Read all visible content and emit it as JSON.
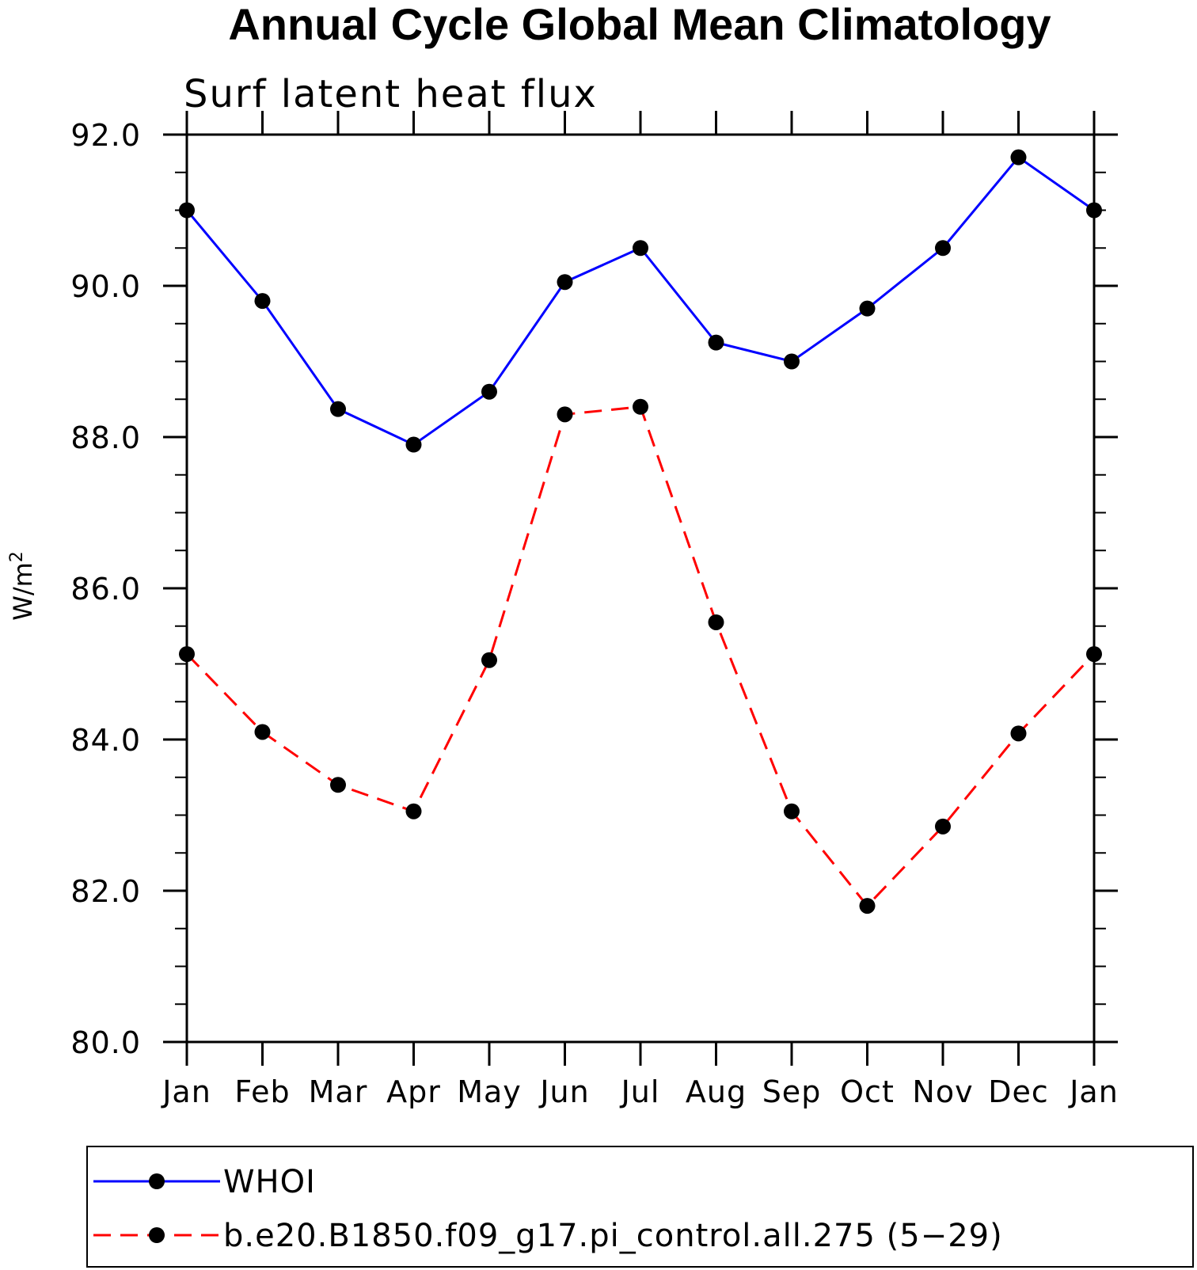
{
  "chart_data": {
    "type": "line",
    "title": "Annual Cycle Global Mean Climatology",
    "subtitle": "Surf latent heat flux",
    "ylabel": "W/m",
    "ylabel_superscript": "2",
    "xlabel": "",
    "categories": [
      "Jan",
      "Feb",
      "Mar",
      "Apr",
      "May",
      "Jun",
      "Jul",
      "Aug",
      "Sep",
      "Oct",
      "Nov",
      "Dec",
      "Jan"
    ],
    "ylim": [
      80.0,
      92.0
    ],
    "y_ticks": [
      "80.0",
      "82.0",
      "84.0",
      "86.0",
      "88.0",
      "90.0",
      "92.0"
    ],
    "grid": false,
    "legend_position": "bottom",
    "series": [
      {
        "name": "WHOI",
        "color": "#0000ff",
        "dash": "solid",
        "marker": "filled-circle",
        "values": [
          91.0,
          89.8,
          88.37,
          87.9,
          88.6,
          90.05,
          90.5,
          89.25,
          89.0,
          89.7,
          90.5,
          91.7,
          91.0
        ]
      },
      {
        "name": "b.e20.B1850.f09_g17.pi_control.all.275 (5−29)",
        "color": "#ff0000",
        "dash": "dashed",
        "marker": "filled-circle",
        "values": [
          85.13,
          84.1,
          83.4,
          83.05,
          85.05,
          88.3,
          88.4,
          85.55,
          83.05,
          81.8,
          82.85,
          84.08,
          85.13
        ]
      }
    ]
  }
}
